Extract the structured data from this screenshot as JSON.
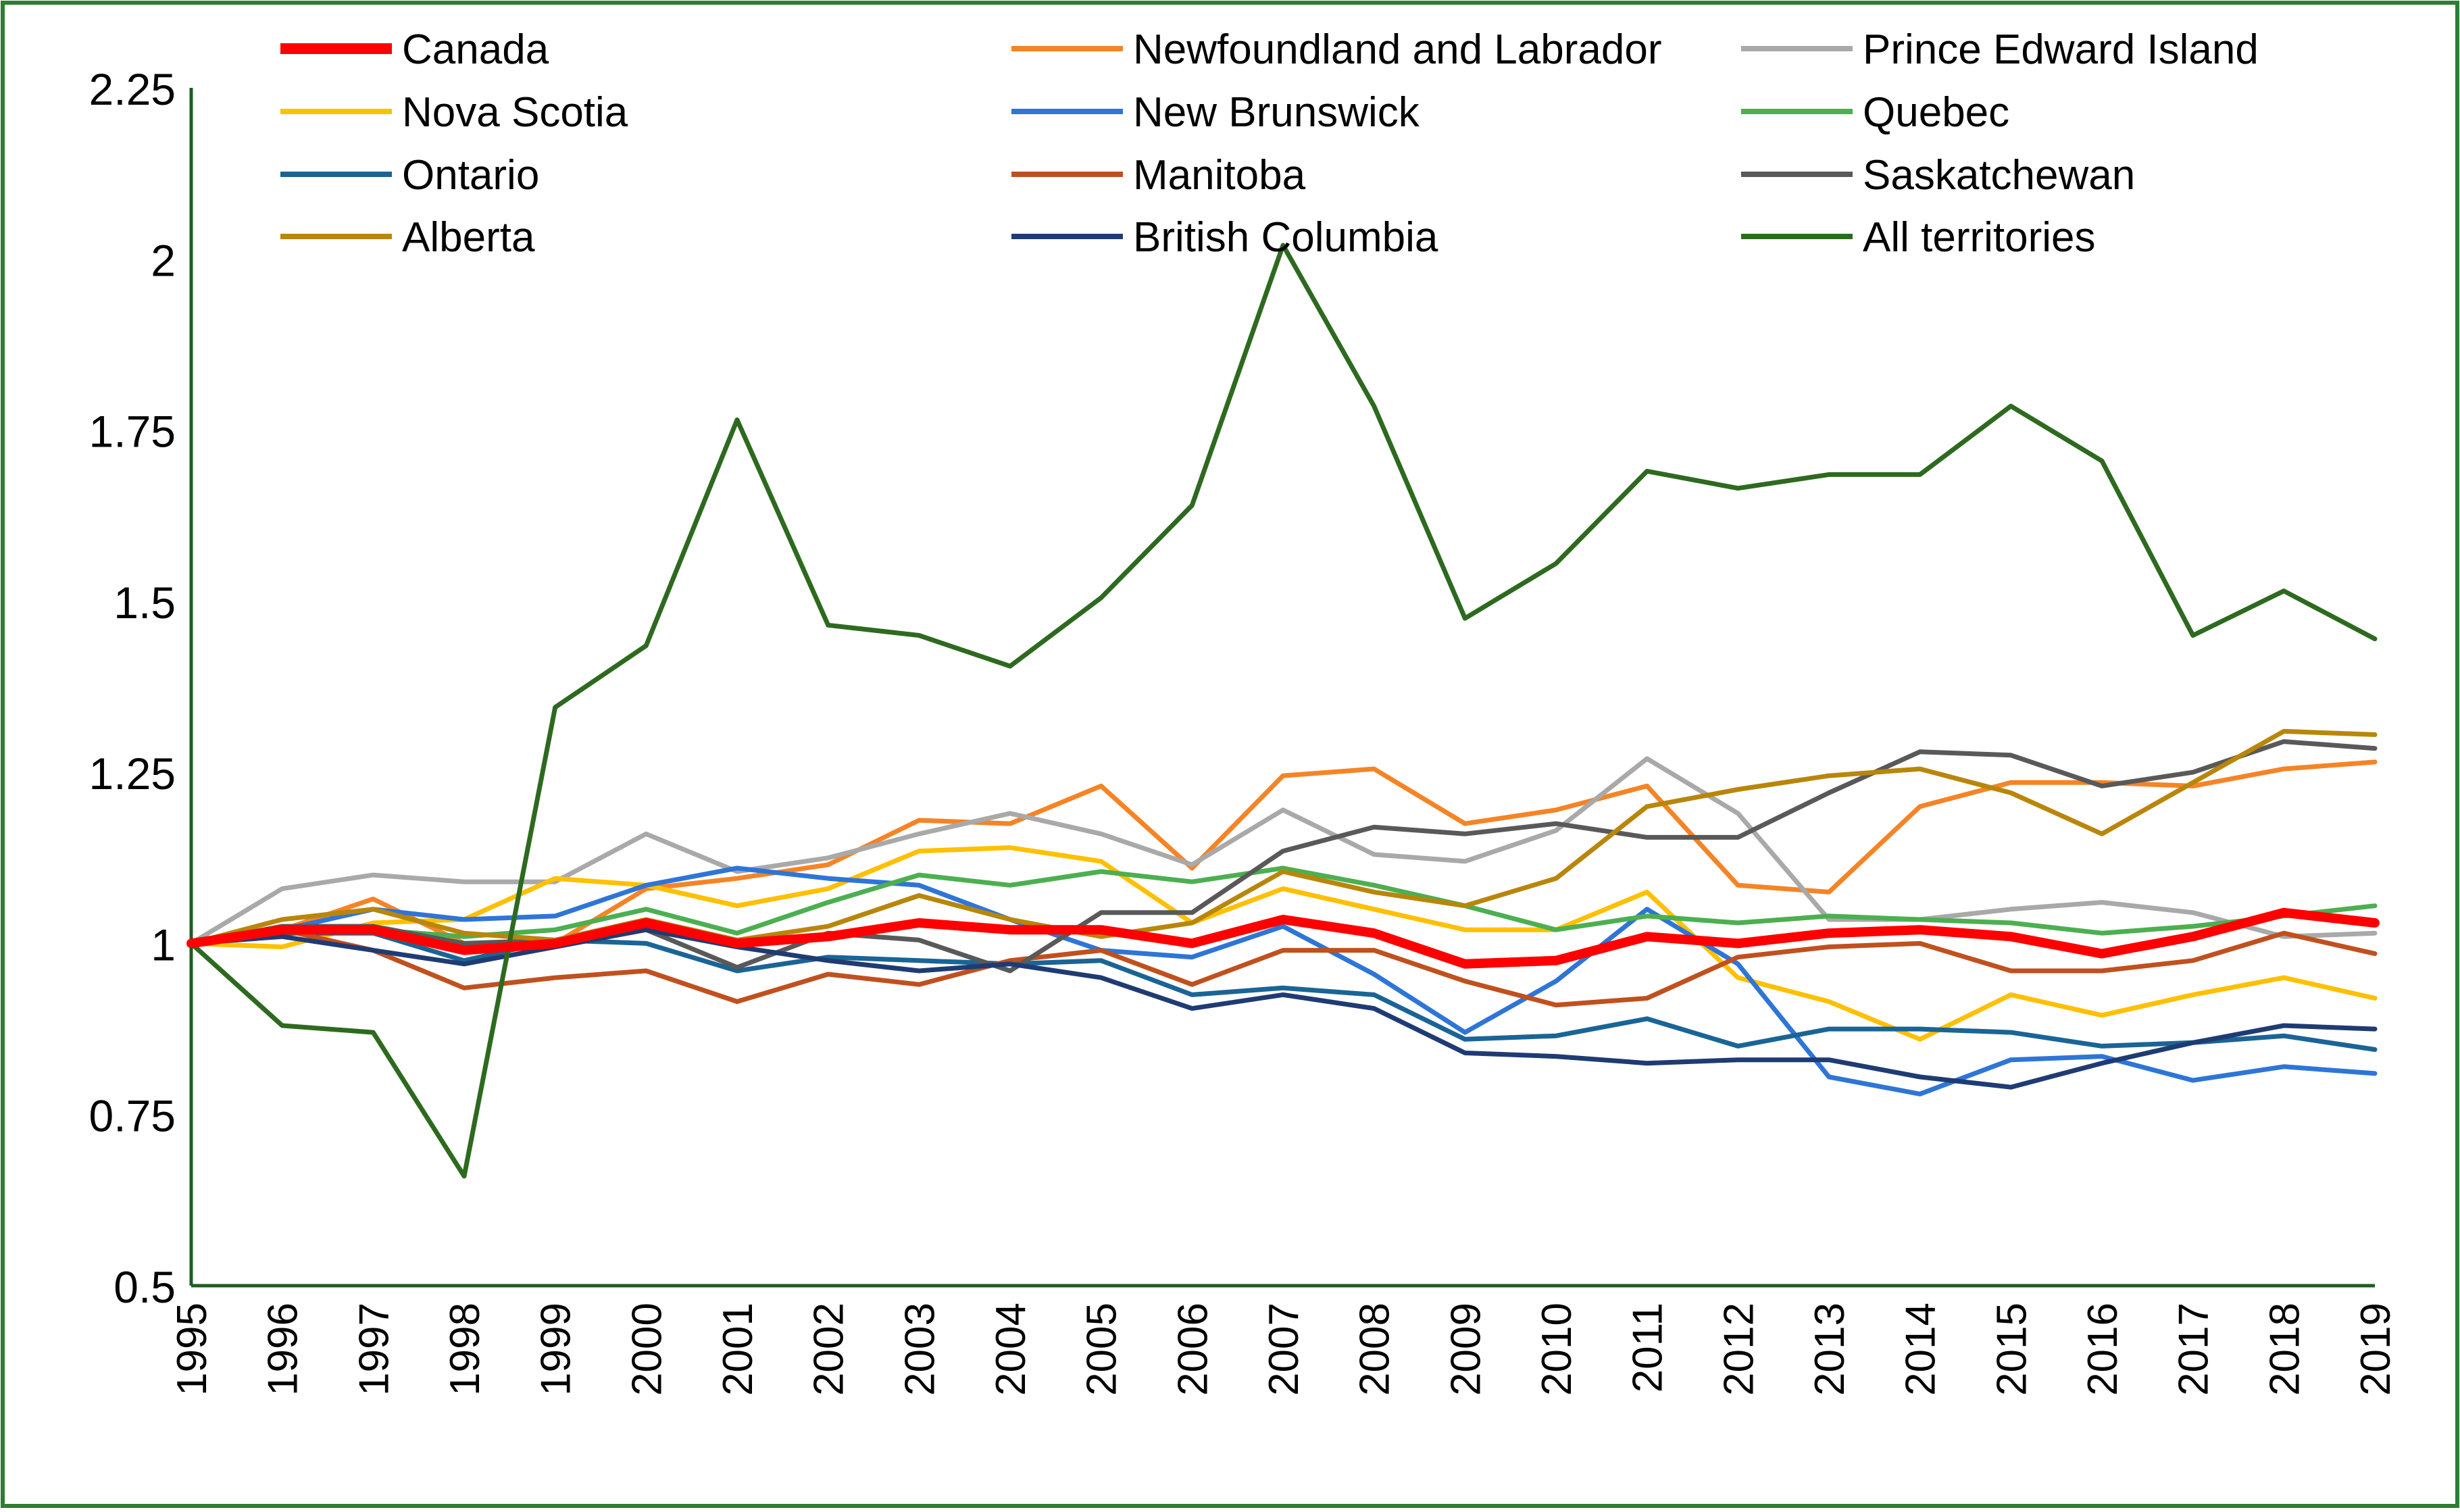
{
  "chart_data": {
    "type": "line",
    "title": "",
    "xlabel": "",
    "ylabel": "",
    "ylim": [
      0.5,
      2.25
    ],
    "yticks": [
      "0.5",
      "0.75",
      "1",
      "1.25",
      "1.5",
      "1.75",
      "2",
      "2.25"
    ],
    "x": [
      "1995",
      "1996",
      "1997",
      "1998",
      "1999",
      "2000",
      "2001",
      "2002",
      "2003",
      "2004",
      "2005",
      "2006",
      "2007",
      "2008",
      "2009",
      "2010",
      "2011",
      "2012",
      "2013",
      "2014",
      "2015",
      "2016",
      "2017",
      "2018",
      "2019"
    ],
    "frame_color": "#2E7D32",
    "axis_color": "#1B5E20",
    "series": [
      {
        "name": "Canada",
        "color": "#FF0000",
        "width": "bold",
        "values": [
          1.0,
          1.02,
          1.02,
          0.99,
          1.0,
          1.03,
          1.0,
          1.01,
          1.03,
          1.02,
          1.02,
          1.0,
          1.035,
          1.015,
          0.97,
          0.975,
          1.01,
          1.0,
          1.015,
          1.02,
          1.01,
          0.985,
          1.01,
          1.045,
          1.03
        ]
      },
      {
        "name": "Newfoundland and Labrador",
        "color": "#F58426",
        "values": [
          1.0,
          1.02,
          1.065,
          1.0,
          1.0,
          1.08,
          1.095,
          1.115,
          1.18,
          1.175,
          1.23,
          1.11,
          1.245,
          1.255,
          1.175,
          1.195,
          1.23,
          1.085,
          1.075,
          1.2,
          1.235,
          1.235,
          1.23,
          1.255,
          1.265
        ]
      },
      {
        "name": "Prince Edward Island",
        "color": "#A9A9A9",
        "values": [
          1.0,
          1.08,
          1.1,
          1.09,
          1.09,
          1.16,
          1.105,
          1.125,
          1.16,
          1.19,
          1.16,
          1.115,
          1.195,
          1.13,
          1.12,
          1.165,
          1.27,
          1.19,
          1.035,
          1.035,
          1.05,
          1.06,
          1.045,
          1.01,
          1.015
        ]
      },
      {
        "name": "Nova Scotia",
        "color": "#FFC000",
        "values": [
          1.0,
          0.995,
          1.03,
          1.035,
          1.095,
          1.085,
          1.055,
          1.08,
          1.135,
          1.14,
          1.12,
          1.03,
          1.08,
          1.05,
          1.02,
          1.02,
          1.075,
          0.95,
          0.915,
          0.86,
          0.925,
          0.895,
          0.925,
          0.95,
          0.92
        ]
      },
      {
        "name": "New Brunswick",
        "color": "#2E75D6",
        "values": [
          1.0,
          1.02,
          1.05,
          1.035,
          1.04,
          1.085,
          1.11,
          1.095,
          1.085,
          1.035,
          0.99,
          0.98,
          1.025,
          0.955,
          0.87,
          0.945,
          1.05,
          0.97,
          0.805,
          0.78,
          0.83,
          0.835,
          0.8,
          0.82,
          0.81
        ]
      },
      {
        "name": "Quebec",
        "color": "#4CAF50",
        "values": [
          1.0,
          1.02,
          1.02,
          1.01,
          1.02,
          1.05,
          1.015,
          1.06,
          1.1,
          1.085,
          1.105,
          1.09,
          1.11,
          1.085,
          1.055,
          1.02,
          1.04,
          1.03,
          1.04,
          1.035,
          1.03,
          1.015,
          1.025,
          1.04,
          1.055
        ]
      },
      {
        "name": "Ontario",
        "color": "#1A6496",
        "values": [
          1.0,
          1.015,
          1.015,
          0.975,
          1.005,
          1.0,
          0.96,
          0.98,
          0.975,
          0.97,
          0.975,
          0.925,
          0.935,
          0.925,
          0.86,
          0.865,
          0.89,
          0.85,
          0.875,
          0.875,
          0.87,
          0.85,
          0.855,
          0.865,
          0.845
        ]
      },
      {
        "name": "Manitoba",
        "color": "#C0501E",
        "values": [
          1.0,
          1.02,
          0.99,
          0.935,
          0.95,
          0.96,
          0.915,
          0.955,
          0.94,
          0.975,
          0.99,
          0.94,
          0.99,
          0.99,
          0.945,
          0.91,
          0.92,
          0.98,
          0.995,
          1.0,
          0.96,
          0.96,
          0.975,
          1.015,
          0.985
        ]
      },
      {
        "name": "Saskatchewan",
        "color": "#595959",
        "values": [
          1.0,
          1.025,
          1.025,
          1.0,
          1.005,
          1.02,
          0.965,
          1.015,
          1.005,
          0.96,
          1.045,
          1.045,
          1.135,
          1.17,
          1.16,
          1.175,
          1.155,
          1.155,
          1.22,
          1.28,
          1.275,
          1.23,
          1.25,
          1.295,
          1.285
        ]
      },
      {
        "name": "Alberta",
        "color": "#B8860B",
        "values": [
          1.0,
          1.035,
          1.05,
          1.015,
          1.005,
          1.035,
          1.005,
          1.025,
          1.07,
          1.035,
          1.01,
          1.03,
          1.105,
          1.075,
          1.055,
          1.095,
          1.2,
          1.225,
          1.245,
          1.255,
          1.22,
          1.16,
          1.235,
          1.31,
          1.305
        ]
      },
      {
        "name": "British Columbia",
        "color": "#1F3B73",
        "values": [
          1.0,
          1.01,
          0.99,
          0.97,
          0.995,
          1.02,
          0.995,
          0.975,
          0.96,
          0.97,
          0.95,
          0.905,
          0.925,
          0.905,
          0.84,
          0.835,
          0.825,
          0.83,
          0.83,
          0.805,
          0.79,
          0.825,
          0.855,
          0.88,
          0.875
        ]
      },
      {
        "name": "All territories",
        "color": "#2D6A1F",
        "values": [
          1.0,
          0.88,
          0.87,
          0.66,
          1.345,
          1.435,
          1.765,
          1.465,
          1.45,
          1.405,
          1.505,
          1.64,
          2.02,
          1.785,
          1.475,
          1.555,
          1.69,
          1.665,
          1.685,
          1.685,
          1.785,
          1.705,
          1.45,
          1.515,
          1.445
        ]
      }
    ]
  }
}
